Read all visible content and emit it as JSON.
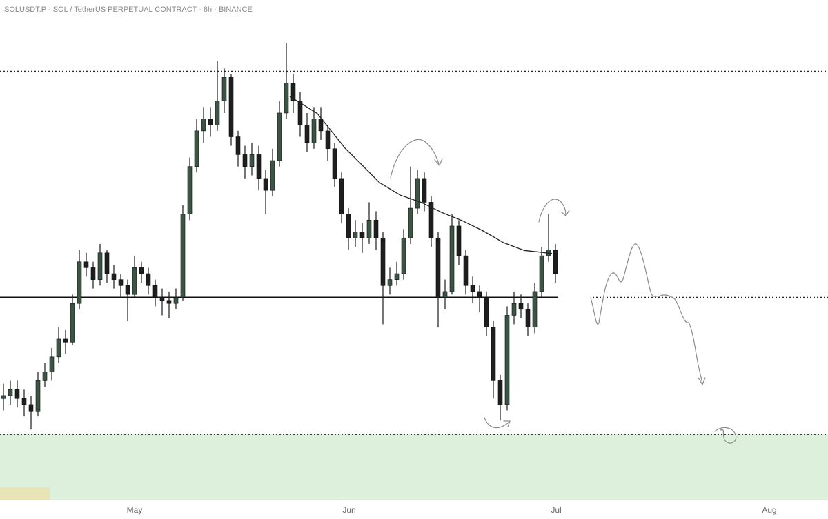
{
  "chart_data": {
    "type": "candlestick",
    "title": "SOLUSDT.P · SOL / TetherUS PERPETUAL CONTRACT · 8h · BINANCE",
    "xlim": [
      0,
      120
    ],
    "xticks": [
      {
        "value": 19.5,
        "label": "May"
      },
      {
        "value": 50.6,
        "label": "Jun"
      },
      {
        "value": 80.6,
        "label": "Jul"
      },
      {
        "value": 111.5,
        "label": "Aug"
      }
    ],
    "ylim": [
      116,
      200
    ],
    "up_color": "#3b5444",
    "down_color": "#1c1f1d",
    "x": [
      0.5,
      1.5,
      2.5,
      3.5,
      4.5,
      5.5,
      6.5,
      7.5,
      8.5,
      9.5,
      10.5,
      11.5,
      12.5,
      13.5,
      14.5,
      15.5,
      16.5,
      17.5,
      18.5,
      19.5,
      20.5,
      21.5,
      22.5,
      23.5,
      24.5,
      25.5,
      26.5,
      27.5,
      28.5,
      29.5,
      30.5,
      31.5,
      32.5,
      33.5,
      34.5,
      35.5,
      36.5,
      37.5,
      38.5,
      39.5,
      40.5,
      41.5,
      42.5,
      43.5,
      44.5,
      45.5,
      46.5,
      47.5,
      48.5,
      49.5,
      50.5,
      51.5,
      52.5,
      53.5,
      54.5,
      55.5,
      56.5,
      57.5,
      58.5,
      59.5,
      60.5,
      61.5,
      62.5,
      63.5,
      64.5,
      65.5,
      66.5,
      67.5,
      68.5,
      69.5,
      70.5,
      71.5,
      72.5,
      73.5,
      74.5,
      75.5,
      76.5,
      77.5,
      78.5,
      79.5,
      80.5
    ],
    "open": [
      133,
      133.5,
      134.5,
      133,
      132,
      130.8,
      136,
      137.5,
      140,
      143,
      142.5,
      149,
      156,
      155,
      153,
      157.5,
      154,
      153,
      152,
      150.5,
      155,
      154,
      152,
      150,
      149.5,
      149,
      150,
      164,
      172,
      178,
      180,
      179,
      183,
      187,
      177,
      174,
      172,
      174,
      170,
      168,
      173,
      181,
      186,
      183,
      179,
      176,
      180,
      178,
      175,
      170,
      164,
      160,
      161,
      160,
      163,
      160,
      152,
      153,
      154,
      160,
      165,
      170,
      166,
      160,
      150,
      151,
      162,
      157,
      152,
      151,
      150,
      145,
      136,
      132,
      147,
      149,
      148,
      145,
      151,
      157,
      158
    ],
    "high": [
      135.5,
      136,
      136,
      134.5,
      133.5,
      137.5,
      139,
      141.5,
      145,
      144.5,
      150.5,
      158,
      157.5,
      156,
      159,
      158,
      155.5,
      154,
      153,
      157,
      156,
      155,
      153,
      151.5,
      151,
      151.5,
      165.5,
      173.5,
      180,
      182,
      182,
      189.8,
      188.5,
      187.5,
      178,
      175.5,
      176,
      175.5,
      171.5,
      175,
      183,
      192.8,
      187.5,
      184.5,
      181,
      182,
      182,
      179,
      176,
      171,
      165,
      163,
      162.5,
      166,
      164.5,
      161,
      155,
      156,
      161.5,
      172,
      171.5,
      171,
      167,
      161,
      153,
      164,
      163,
      158,
      153.5,
      152,
      151,
      146,
      137,
      148.5,
      151,
      150.5,
      149,
      152.5,
      158.5,
      164,
      159
    ],
    "low": [
      131,
      132,
      131.5,
      130,
      127.8,
      130,
      135,
      136,
      139,
      140.5,
      142,
      148,
      153.5,
      151.5,
      152,
      152.5,
      151.5,
      150,
      146,
      150,
      152.5,
      150.5,
      148.5,
      147,
      146.5,
      148,
      149.5,
      163,
      171,
      176,
      177,
      178,
      181,
      175.5,
      172,
      170,
      170.5,
      168,
      164,
      167,
      172,
      180,
      181,
      177,
      174.5,
      175,
      176.5,
      173,
      168.5,
      162.5,
      158,
      158.5,
      157.5,
      159,
      158,
      145.5,
      150.5,
      152,
      153,
      159,
      164,
      164.5,
      158.5,
      145,
      148,
      150.5,
      155.5,
      150.5,
      149,
      147.5,
      143.5,
      133,
      129.3,
      131,
      145.5,
      146.5,
      143.5,
      144,
      150,
      156,
      152.5
    ],
    "close": [
      133.5,
      134.5,
      133,
      132,
      130.8,
      136,
      137.5,
      140,
      143,
      142.5,
      149,
      156,
      155,
      153,
      157.5,
      154,
      153,
      152,
      150.5,
      155,
      154,
      152,
      150,
      149.5,
      149,
      150,
      164,
      172,
      178,
      180,
      179,
      183,
      187,
      177,
      174,
      172,
      174,
      170,
      168,
      173,
      181,
      186,
      183,
      179,
      176,
      180,
      178,
      175,
      170,
      164,
      160,
      161,
      160,
      163,
      160,
      152,
      153,
      154,
      160,
      165,
      170,
      166,
      160,
      150,
      151,
      162,
      157,
      152,
      151,
      150,
      145,
      136,
      132,
      147,
      149,
      148,
      145,
      151,
      157,
      158,
      154
    ],
    "ma_x": [
      42,
      46,
      48,
      50,
      52,
      55,
      58,
      61,
      64,
      67,
      70,
      73,
      76,
      80
    ],
    "ma_values": [
      183.8,
      180.9,
      178,
      175.1,
      172.8,
      169.3,
      167.2,
      166,
      164.3,
      162.9,
      161.2,
      159.2,
      157.9,
      157.4
    ],
    "levels": [
      188,
      150,
      127
    ],
    "zone_color": "#ddf0dc"
  }
}
